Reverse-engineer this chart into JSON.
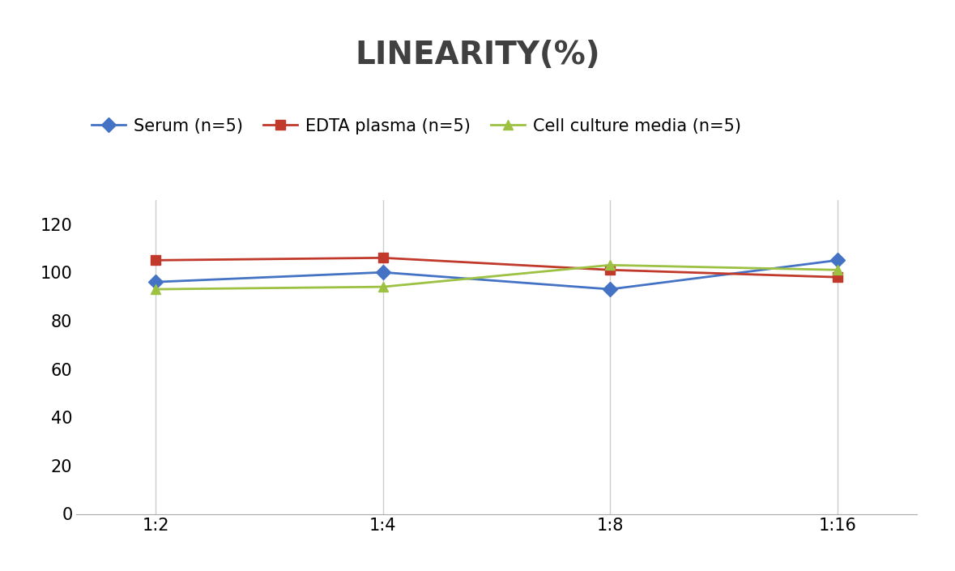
{
  "title": "LINEARITY(%)",
  "x_labels": [
    "1:2",
    "1:4",
    "1:8",
    "1:16"
  ],
  "series": [
    {
      "name": "Serum (n=5)",
      "values": [
        96,
        100,
        93,
        105
      ],
      "color": "#4472C4",
      "marker": "D",
      "marker_color": "#4472C4"
    },
    {
      "name": "EDTA plasma (n=5)",
      "values": [
        105,
        106,
        101,
        98
      ],
      "color": "#C0392B",
      "marker": "s",
      "marker_color": "#C0392B"
    },
    {
      "name": "Cell culture media (n=5)",
      "values": [
        93,
        94,
        103,
        101
      ],
      "color": "#9DC143",
      "marker": "^",
      "marker_color": "#9DC143"
    }
  ],
  "ylim": [
    0,
    130
  ],
  "yticks": [
    0,
    20,
    40,
    60,
    80,
    100,
    120
  ],
  "title_fontsize": 28,
  "title_color": "#404040",
  "legend_fontsize": 15,
  "tick_fontsize": 15,
  "background_color": "#ffffff",
  "grid_color": "#cccccc"
}
